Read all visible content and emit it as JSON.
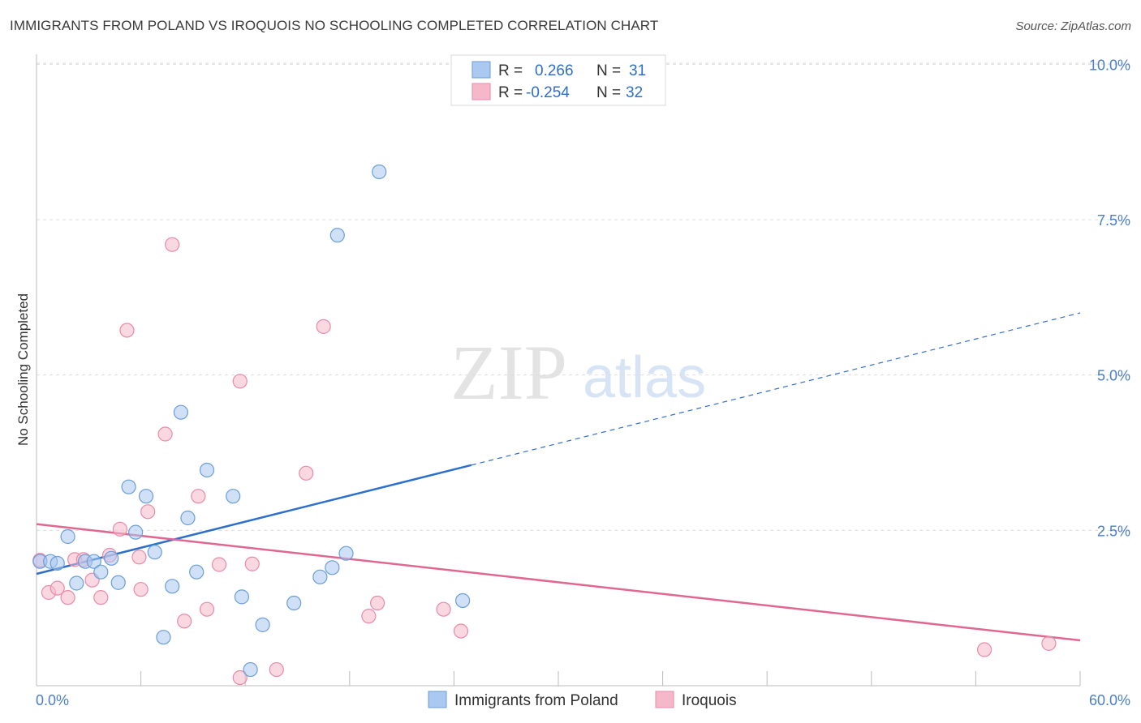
{
  "title": "IMMIGRANTS FROM POLAND VS IROQUOIS NO SCHOOLING COMPLETED CORRELATION CHART",
  "source": "Source: ZipAtlas.com",
  "watermark": {
    "zip": "ZIP",
    "atlas": "atlas"
  },
  "colors": {
    "blue_fill": "#aac8f0",
    "blue_stroke": "#6a9ed8",
    "blue_line": "#2e6fc9",
    "pink_fill": "#f5b8ca",
    "pink_stroke": "#e88aa8",
    "pink_line": "#e06890",
    "tick_text": "#4a7fc8",
    "grid": "#dddddd"
  },
  "legend": {
    "row1": {
      "r_label": "R =",
      "r_value": "0.266",
      "n_label": "N =",
      "n_value": "31"
    },
    "row2": {
      "r_label": "R =",
      "r_value": "-0.254",
      "n_label": "N =",
      "n_value": "32"
    }
  },
  "chart_data": {
    "type": "scatter",
    "title": "IMMIGRANTS FROM POLAND VS IROQUOIS NO SCHOOLING COMPLETED CORRELATION CHART",
    "xlabel": "",
    "ylabel": "No Schooling Completed",
    "xlim": [
      0,
      60
    ],
    "ylim": [
      0,
      10.5
    ],
    "x_tick_labels": {
      "min": "0.0%",
      "max": "60.0%"
    },
    "y_ticks": [
      {
        "value": 2.5,
        "label": "2.5%"
      },
      {
        "value": 5.0,
        "label": "5.0%"
      },
      {
        "value": 7.5,
        "label": "7.5%"
      },
      {
        "value": 10.0,
        "label": "10.0%"
      }
    ],
    "grid": "horizontal dashed",
    "legend_position": "top-center and bottom",
    "series": [
      {
        "name": "Immigrants from Poland",
        "color": "blue",
        "points": [
          [
            0.2,
            2.0
          ],
          [
            0.8,
            2.0
          ],
          [
            1.2,
            1.97
          ],
          [
            1.8,
            2.4
          ],
          [
            2.3,
            1.65
          ],
          [
            2.8,
            2.0
          ],
          [
            3.3,
            2.0
          ],
          [
            3.7,
            1.83
          ],
          [
            4.3,
            2.05
          ],
          [
            4.7,
            1.66
          ],
          [
            5.3,
            3.2
          ],
          [
            5.7,
            2.47
          ],
          [
            6.3,
            3.05
          ],
          [
            6.8,
            2.15
          ],
          [
            7.3,
            0.78
          ],
          [
            7.8,
            1.6
          ],
          [
            8.3,
            4.4
          ],
          [
            8.7,
            2.7
          ],
          [
            9.2,
            1.83
          ],
          [
            9.8,
            3.47
          ],
          [
            11.3,
            3.05
          ],
          [
            11.8,
            1.43
          ],
          [
            12.3,
            0.26
          ],
          [
            13.0,
            0.98
          ],
          [
            14.8,
            1.33
          ],
          [
            16.3,
            1.75
          ],
          [
            17.0,
            1.9
          ],
          [
            17.3,
            7.25
          ],
          [
            17.8,
            2.13
          ],
          [
            19.7,
            8.27
          ],
          [
            24.5,
            1.37
          ]
        ],
        "trend": {
          "x": [
            0,
            25
          ],
          "y": [
            1.8,
            3.55
          ],
          "dashed_extension_to": [
            60,
            6.0
          ]
        }
      },
      {
        "name": "Iroquois",
        "color": "pink",
        "points": [
          [
            0.2,
            2.02
          ],
          [
            0.7,
            1.5
          ],
          [
            1.2,
            1.57
          ],
          [
            1.8,
            1.42
          ],
          [
            2.2,
            2.03
          ],
          [
            2.7,
            2.03
          ],
          [
            3.2,
            1.7
          ],
          [
            3.7,
            1.42
          ],
          [
            4.2,
            2.1
          ],
          [
            4.8,
            2.52
          ],
          [
            5.2,
            5.72
          ],
          [
            5.9,
            2.07
          ],
          [
            6.0,
            1.55
          ],
          [
            6.4,
            2.8
          ],
          [
            7.4,
            4.05
          ],
          [
            7.8,
            7.1
          ],
          [
            8.5,
            1.04
          ],
          [
            9.3,
            3.05
          ],
          [
            9.8,
            1.23
          ],
          [
            10.5,
            1.95
          ],
          [
            11.7,
            0.13
          ],
          [
            11.7,
            4.9
          ],
          [
            12.4,
            1.96
          ],
          [
            13.8,
            0.26
          ],
          [
            15.5,
            3.42
          ],
          [
            16.5,
            5.78
          ],
          [
            19.1,
            1.12
          ],
          [
            19.6,
            1.33
          ],
          [
            23.4,
            1.23
          ],
          [
            24.4,
            0.88
          ],
          [
            54.5,
            0.58
          ],
          [
            58.2,
            0.68
          ]
        ],
        "trend": {
          "x": [
            0,
            60
          ],
          "y": [
            2.6,
            0.73
          ]
        }
      }
    ]
  },
  "bottom_legend": {
    "item1": "Immigrants from Poland",
    "item2": "Iroquois"
  }
}
